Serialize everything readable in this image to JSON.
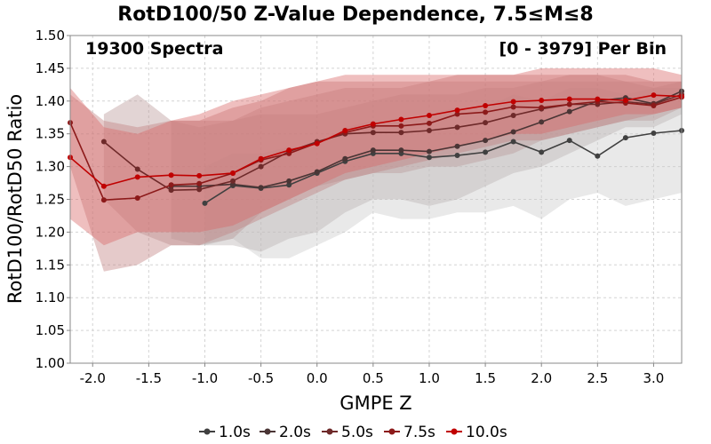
{
  "chart_data": {
    "type": "line",
    "title": "RotD100/50 Z-Value Dependence, 7.5≤M≤8",
    "annotation_left": "19300 Spectra",
    "annotation_right": "[0 - 3979] Per Bin",
    "xlabel": "GMPE Z",
    "ylabel": "RotD100/RotD50 Ratio",
    "xlim": [
      -2.2,
      3.25
    ],
    "ylim": [
      1.0,
      1.5
    ],
    "xticks": [
      -2.0,
      -1.5,
      -1.0,
      -0.5,
      0.0,
      0.5,
      1.0,
      1.5,
      2.0,
      2.5,
      3.0
    ],
    "xtick_labels": [
      "-2.0",
      "-1.5",
      "-1.0",
      "-0.5",
      "0.0",
      "0.5",
      "1.0",
      "1.5",
      "2.0",
      "2.5",
      "3.0"
    ],
    "yticks": [
      1.0,
      1.05,
      1.1,
      1.15,
      1.2,
      1.25,
      1.3,
      1.35,
      1.4,
      1.45,
      1.5
    ],
    "ytick_labels": [
      "1.00",
      "1.05",
      "1.10",
      "1.15",
      "1.20",
      "1.25",
      "1.30",
      "1.35",
      "1.40",
      "1.45",
      "1.50"
    ],
    "grid": true,
    "legend_position": "bottom",
    "series": [
      {
        "name": "1.0s",
        "color": "#404040",
        "x": [
          -1.0,
          -0.75,
          -0.5,
          -0.25,
          0.0,
          0.25,
          0.5,
          0.75,
          1.0,
          1.25,
          1.5,
          1.75,
          2.0,
          2.25,
          2.5,
          2.75,
          3.0,
          3.25
        ],
        "y": [
          1.244,
          1.271,
          1.267,
          1.272,
          1.29,
          1.308,
          1.32,
          1.32,
          1.314,
          1.317,
          1.322,
          1.338,
          1.322,
          1.34,
          1.316,
          1.344,
          1.351,
          1.355
        ],
        "band_upper": [
          1.3,
          1.32,
          1.32,
          1.33,
          1.33,
          1.36,
          1.37,
          1.37,
          1.38,
          1.39,
          1.39,
          1.41,
          1.4,
          1.42,
          1.42,
          1.41,
          1.42,
          1.42
        ],
        "band_lower": [
          1.18,
          1.19,
          1.16,
          1.16,
          1.18,
          1.2,
          1.23,
          1.22,
          1.22,
          1.23,
          1.23,
          1.24,
          1.22,
          1.25,
          1.26,
          1.24,
          1.25,
          1.26
        ]
      },
      {
        "name": "2.0s",
        "color": "#4a3535",
        "x": [
          -1.3,
          -1.05,
          -0.75,
          -0.5,
          -0.25,
          0.0,
          0.25,
          0.5,
          0.75,
          1.0,
          1.25,
          1.5,
          1.75,
          2.0,
          2.25,
          2.5,
          2.75,
          3.0,
          3.25
        ],
        "y": [
          1.27,
          1.27,
          1.273,
          1.268,
          1.278,
          1.292,
          1.312,
          1.325,
          1.325,
          1.323,
          1.331,
          1.34,
          1.353,
          1.368,
          1.384,
          1.4,
          1.405,
          1.396,
          1.415
        ],
        "band_upper": [
          1.37,
          1.36,
          1.37,
          1.38,
          1.38,
          1.38,
          1.39,
          1.4,
          1.41,
          1.41,
          1.41,
          1.42,
          1.42,
          1.43,
          1.43,
          1.43,
          1.43,
          1.42,
          1.43
        ],
        "band_lower": [
          1.19,
          1.18,
          1.18,
          1.17,
          1.19,
          1.2,
          1.23,
          1.25,
          1.25,
          1.24,
          1.25,
          1.27,
          1.29,
          1.3,
          1.32,
          1.34,
          1.36,
          1.36,
          1.38
        ]
      },
      {
        "name": "5.0s",
        "color": "#6e2a2a",
        "x": [
          -1.9,
          -1.6,
          -1.3,
          -1.05,
          -0.75,
          -0.5,
          -0.25,
          0.0,
          0.25,
          0.5,
          0.75,
          1.0,
          1.25,
          1.5,
          1.75,
          2.0,
          2.25,
          2.5,
          2.75,
          3.0,
          3.25
        ],
        "y": [
          1.338,
          1.296,
          1.264,
          1.265,
          1.278,
          1.3,
          1.323,
          1.338,
          1.35,
          1.352,
          1.352,
          1.355,
          1.36,
          1.367,
          1.378,
          1.388,
          1.395,
          1.395,
          1.399,
          1.395,
          1.41
        ],
        "band_upper": [
          1.38,
          1.41,
          1.37,
          1.37,
          1.37,
          1.39,
          1.4,
          1.41,
          1.42,
          1.42,
          1.42,
          1.43,
          1.43,
          1.43,
          1.43,
          1.43,
          1.44,
          1.44,
          1.43,
          1.43,
          1.43
        ],
        "band_lower": [
          1.25,
          1.2,
          1.18,
          1.18,
          1.19,
          1.23,
          1.25,
          1.27,
          1.28,
          1.29,
          1.29,
          1.3,
          1.3,
          1.31,
          1.32,
          1.34,
          1.35,
          1.36,
          1.37,
          1.37,
          1.39
        ]
      },
      {
        "name": "7.5s",
        "color": "#8c1a1a",
        "x": [
          -2.2,
          -1.9,
          -1.6,
          -1.3,
          -1.05,
          -0.75,
          -0.5,
          -0.25,
          0.0,
          0.25,
          0.5,
          0.75,
          1.0,
          1.25,
          1.5,
          1.75,
          2.0,
          2.25,
          2.5,
          2.75,
          3.0,
          3.25
        ],
        "y": [
          1.367,
          1.249,
          1.252,
          1.272,
          1.274,
          1.29,
          1.31,
          1.32,
          1.336,
          1.352,
          1.362,
          1.362,
          1.366,
          1.38,
          1.383,
          1.391,
          1.39,
          1.395,
          1.399,
          1.397,
          1.393,
          1.406
        ],
        "band_upper": [
          1.41,
          1.37,
          1.36,
          1.37,
          1.37,
          1.39,
          1.4,
          1.42,
          1.43,
          1.43,
          1.43,
          1.43,
          1.43,
          1.44,
          1.44,
          1.44,
          1.44,
          1.44,
          1.44,
          1.44,
          1.43,
          1.43
        ],
        "band_lower": [
          1.3,
          1.14,
          1.15,
          1.18,
          1.18,
          1.2,
          1.22,
          1.24,
          1.26,
          1.28,
          1.29,
          1.3,
          1.31,
          1.32,
          1.33,
          1.34,
          1.34,
          1.35,
          1.36,
          1.37,
          1.38,
          1.39
        ]
      },
      {
        "name": "10.0s",
        "color": "#c00000",
        "x": [
          -2.2,
          -1.9,
          -1.6,
          -1.3,
          -1.05,
          -0.75,
          -0.5,
          -0.25,
          0.0,
          0.25,
          0.5,
          0.75,
          1.0,
          1.25,
          1.5,
          1.75,
          2.0,
          2.25,
          2.5,
          2.75,
          3.0,
          3.25
        ],
        "y": [
          1.314,
          1.27,
          1.284,
          1.287,
          1.286,
          1.29,
          1.312,
          1.325,
          1.335,
          1.355,
          1.365,
          1.372,
          1.378,
          1.386,
          1.393,
          1.399,
          1.401,
          1.403,
          1.403,
          1.401,
          1.409,
          1.407
        ],
        "band_upper": [
          1.42,
          1.36,
          1.35,
          1.37,
          1.38,
          1.4,
          1.41,
          1.42,
          1.43,
          1.44,
          1.44,
          1.44,
          1.44,
          1.44,
          1.44,
          1.44,
          1.45,
          1.45,
          1.45,
          1.45,
          1.45,
          1.44
        ],
        "band_lower": [
          1.22,
          1.18,
          1.2,
          1.2,
          1.2,
          1.21,
          1.23,
          1.25,
          1.27,
          1.29,
          1.3,
          1.31,
          1.32,
          1.33,
          1.34,
          1.35,
          1.35,
          1.36,
          1.37,
          1.38,
          1.38,
          1.39
        ]
      }
    ]
  }
}
